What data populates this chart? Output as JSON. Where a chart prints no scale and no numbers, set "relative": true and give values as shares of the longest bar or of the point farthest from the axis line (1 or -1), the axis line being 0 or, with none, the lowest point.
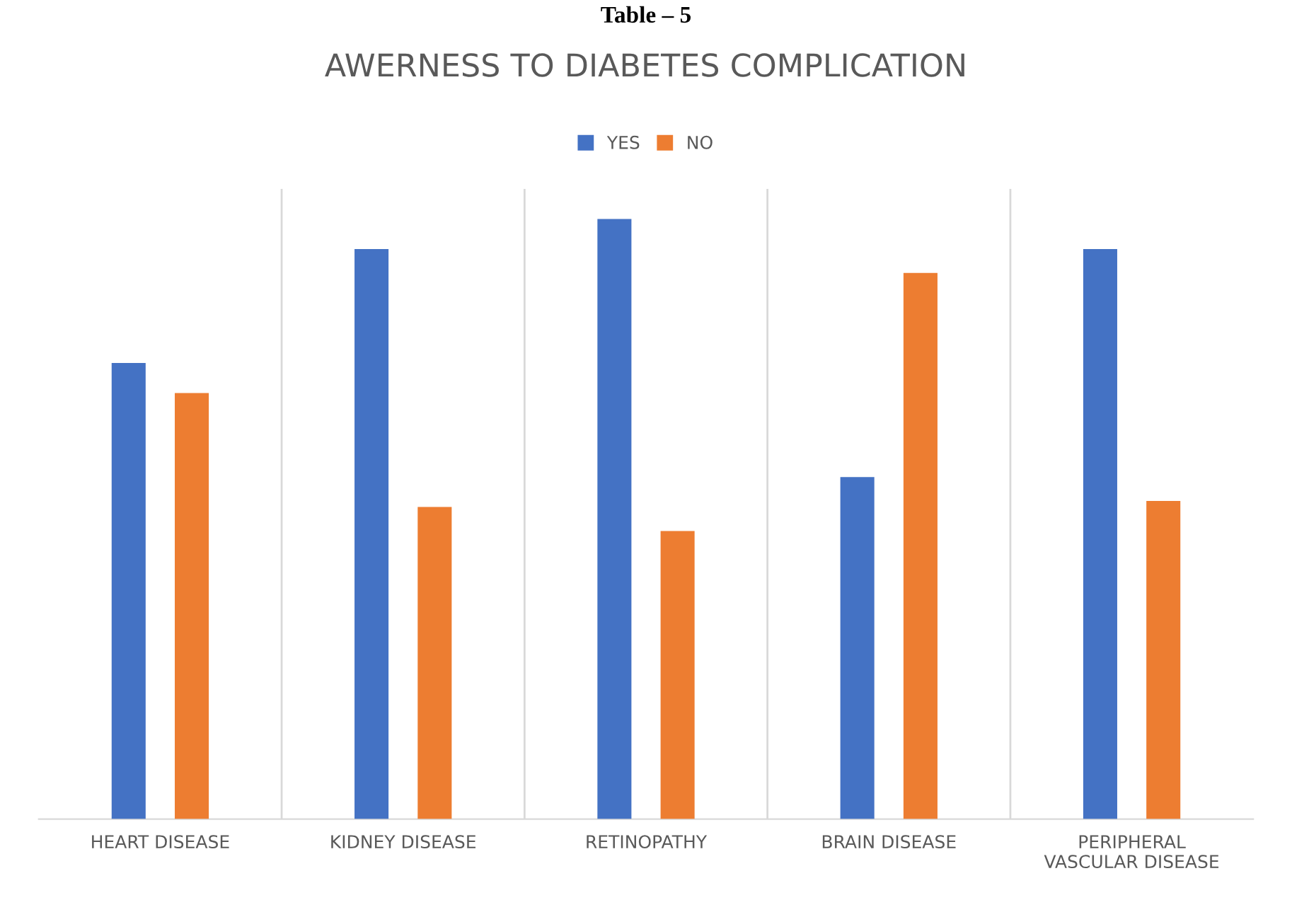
{
  "chart_data": {
    "type": "bar",
    "title": "AWERNESS TO DIABETES COMPLICATION",
    "annotations": [
      "Table – 5"
    ],
    "categories": [
      "HEART DISEASE",
      "KIDNEY DISEASE",
      "RETINOPATHY",
      "BRAIN DISEASE",
      "PERIPHERAL\nVASCULAR DISEASE"
    ],
    "series": [
      {
        "name": "YES",
        "color": "#4472c4",
        "values": [
          0.76,
          0.95,
          1,
          0.57,
          0.95
        ]
      },
      {
        "name": "NO",
        "color": "#ed7d31",
        "values": [
          0.71,
          0.52,
          0.48,
          0.91,
          0.53
        ]
      }
    ],
    "relative": true,
    "grid": "x",
    "legend": "top"
  }
}
